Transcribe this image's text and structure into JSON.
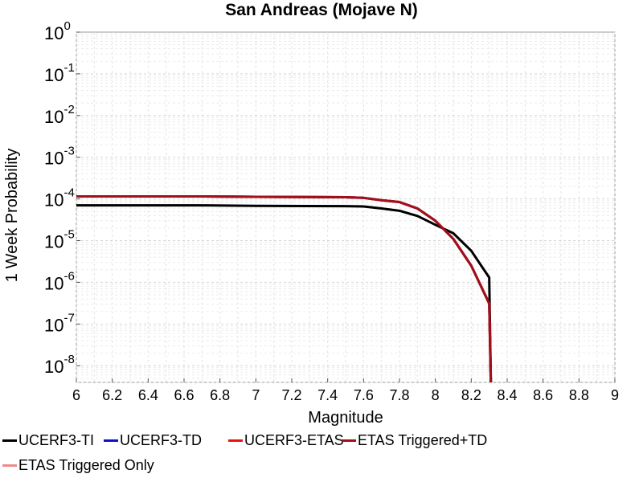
{
  "chart_data": {
    "type": "line",
    "title": "San Andreas (Mojave N)",
    "xlabel": "Magnitude",
    "ylabel": "1 Week Probability",
    "xlim": [
      6,
      9
    ],
    "ylim_exponents": [
      -8.4,
      0
    ],
    "y_scale": "log",
    "grid": true,
    "legend_position": "bottom",
    "x_ticks": [
      "6",
      "6.2",
      "6.4",
      "6.6",
      "6.8",
      "7",
      "7.2",
      "7.4",
      "7.6",
      "7.8",
      "8",
      "8.2",
      "8.4",
      "8.6",
      "8.8",
      "9"
    ],
    "y_tick_exponents": [
      "0",
      "-1",
      "-2",
      "-3",
      "-4",
      "-5",
      "-6",
      "-7",
      "-8"
    ],
    "series": [
      {
        "name": "UCERF3-TI",
        "color": "#000000",
        "x": [
          6.0,
          6.7,
          7.0,
          7.5,
          7.6,
          7.7,
          7.8,
          7.9,
          8.0,
          8.1,
          8.2,
          8.3,
          8.31
        ],
        "y": [
          7e-05,
          7e-05,
          6.8e-05,
          6.7e-05,
          6.6e-05,
          5.9e-05,
          5.2e-05,
          3.9e-05,
          2.4e-05,
          1.5e-05,
          5.7e-06,
          1.3e-06,
          1e-09
        ]
      },
      {
        "name": "UCERF3-TD",
        "color": "#1010c8",
        "x": [
          6.0,
          6.7,
          7.0,
          7.5,
          7.6,
          7.7,
          7.8,
          7.9,
          8.0,
          8.1,
          8.2,
          8.3,
          8.31
        ],
        "y": [
          0.000115,
          0.000115,
          0.000112,
          0.00011,
          0.000106,
          9.3e-05,
          8.4e-05,
          5.9e-05,
          3e-05,
          1.1e-05,
          2.5e-06,
          3.1e-07,
          1e-09
        ]
      },
      {
        "name": "UCERF3-ETAS",
        "color": "#e8140a",
        "x": [
          6.0,
          6.7,
          7.0,
          7.5,
          7.6,
          7.7,
          7.8,
          7.9,
          8.0,
          8.1,
          8.2,
          8.3,
          8.31
        ],
        "y": [
          0.000115,
          0.000115,
          0.000112,
          0.00011,
          0.000106,
          9.3e-05,
          8.4e-05,
          5.9e-05,
          3e-05,
          1.1e-05,
          2.5e-06,
          3.1e-07,
          1e-09
        ]
      },
      {
        "name": "ETAS Triggered+TD",
        "color": "#a01018",
        "x": [
          6.0,
          6.7,
          7.0,
          7.5,
          7.6,
          7.7,
          7.8,
          7.9,
          8.0,
          8.1,
          8.2,
          8.3,
          8.31
        ],
        "y": [
          0.000115,
          0.000115,
          0.000112,
          0.00011,
          0.000106,
          9.3e-05,
          8.4e-05,
          5.9e-05,
          3e-05,
          1.1e-05,
          2.5e-06,
          3.1e-07,
          1e-09
        ]
      },
      {
        "name": "ETAS Triggered Only",
        "color": "#f08a8a",
        "x": [],
        "y": []
      }
    ]
  }
}
